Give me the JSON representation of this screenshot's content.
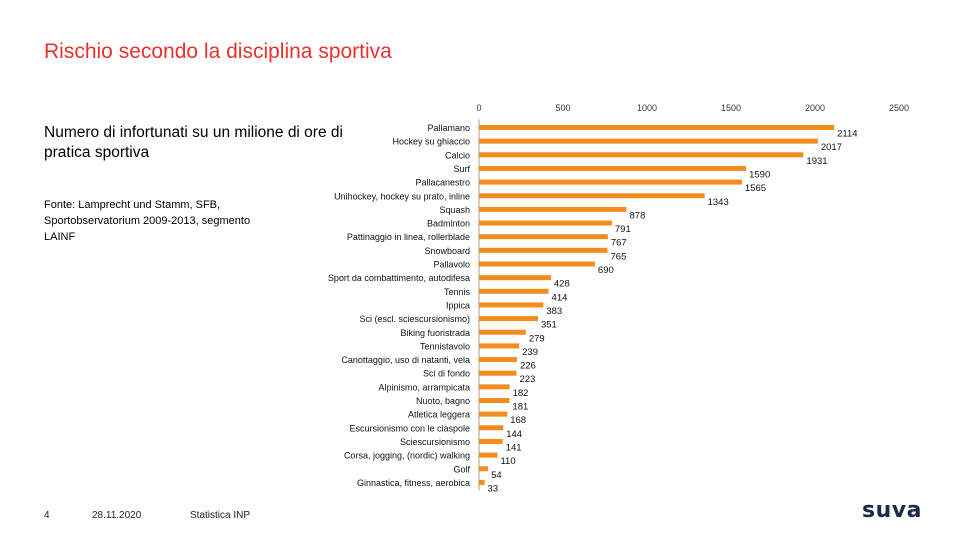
{
  "slide": {
    "title": "Rischio secondo la disciplina sportiva",
    "subtitle": "Numero di infortunati su un milione di ore di pratica sportiva",
    "source": "Fonte: Lamprecht und Stamm, SFB, Sportobservatorium 2009-2013, segmento LAINF",
    "page_number": "4",
    "date": "28.11.2020",
    "footer_label": "Statistica INP",
    "logo": "suva"
  },
  "colors": {
    "accent": "#e8312f",
    "bar": "#f28c1f",
    "axis": "#888888"
  },
  "chart_data": {
    "type": "bar",
    "orientation": "horizontal",
    "title": "",
    "xlabel": "",
    "ylabel": "",
    "xlim": [
      0,
      2500
    ],
    "xticks": [
      0,
      500,
      1000,
      1500,
      2000,
      2500
    ],
    "tick_labels": [
      "0",
      "500",
      "1000",
      "1500",
      "2000",
      "2500"
    ],
    "grid": false,
    "categories": [
      "Pallamano",
      "Hockey su ghiaccio",
      "Calcio",
      "Surf",
      "Pallacanestro",
      "Unihockey, hockey su prato, inline",
      "Squash",
      "Badminton",
      "Pattinaggio in linea, rollerblade",
      "Snowboard",
      "Pallavolo",
      "Sport da combattimento, autodifesa",
      "Tennis",
      "Ippica",
      "Sci (escl. sciescursionismo)",
      "Biking fuoristrada",
      "Tennistavolo",
      "Canottaggio, uso di natanti, vela",
      "Sci di fondo",
      "Alpinismo, arrampicata",
      "Nuoto, bagno",
      "Atletica leggera",
      "Escursionismo con le ciaspole",
      "Sciescursionismo",
      "Corsa, jogging, (nordic) walking",
      "Golf",
      "Ginnastica, fitness, aerobica"
    ],
    "values": [
      2114,
      2017,
      1931,
      1590,
      1565,
      1343,
      878,
      791,
      767,
      765,
      690,
      428,
      414,
      383,
      351,
      279,
      239,
      226,
      223,
      182,
      181,
      168,
      144,
      141,
      110,
      54,
      33
    ],
    "data_labels": [
      "2114",
      "2017",
      "1931",
      "1590",
      "1565",
      "1343",
      "878",
      "791",
      "767",
      "765",
      "690",
      "428",
      "414",
      "383",
      "351",
      "279",
      "239",
      "226",
      "223",
      "182",
      "181",
      "168",
      "144",
      "141",
      "110",
      "54",
      "33"
    ]
  }
}
